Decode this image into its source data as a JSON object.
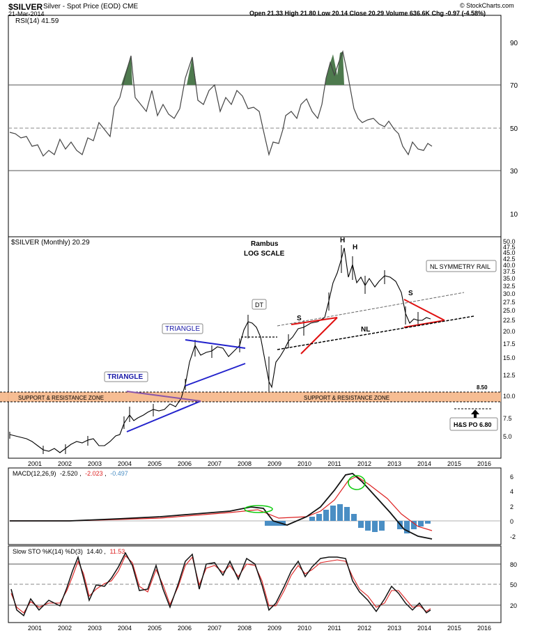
{
  "header": {
    "symbol": "$SILVER",
    "description": "Silver - Spot Price (EOD)",
    "exchange": "CME",
    "date": "21-Mar-2014",
    "quote": "Open 21.33  High 21.80  Low 20.14  Close 20.29  Volume 636.6K  Chg -0.97 (-4.58%)",
    "credit": "© StockCharts.com"
  },
  "rsi_panel": {
    "label": "RSI(14) 41.59",
    "y_ticks": [
      "90",
      "70",
      "50",
      "30",
      "10"
    ]
  },
  "price_panel": {
    "label": "$SILVER (Monthly) 20.29",
    "note_line1": "Rambus",
    "note_line2": "LOG SCALE",
    "y_ticks": [
      "50.0",
      "47.5",
      "45.0",
      "42.5",
      "40.0",
      "37.5",
      "35.0",
      "32.5",
      "30.0",
      "27.5",
      "25.0",
      "22.5",
      "20.0",
      "17.5",
      "15.0",
      "12.5",
      "10.0",
      "7.5",
      "5.0"
    ],
    "annotations": {
      "triangle_2004": "TRIANGLE",
      "triangle_2006": "TRIANGLE",
      "dt": "DT",
      "s_left": "S",
      "h1": "H",
      "h2": "H",
      "s_right": "S",
      "nl": "NL",
      "nl_rail": "NL SYMMETRY RAIL",
      "zone_left": "SUPPORT & RESISTANCE ZONE",
      "zone_mid": "SUPPORT & RESISTANCE ZONE",
      "level_850": "8.50",
      "hs_po": "H&S PO 6.80"
    }
  },
  "macd_panel": {
    "label": "MACD(12,26,9)",
    "v1": "-2.520",
    "v2": "-2.023",
    "v3": "-0.497",
    "y_ticks": [
      "6",
      "4",
      "2",
      "0",
      "-2"
    ]
  },
  "sto_panel": {
    "label": "Slow STO %K(14) %D(3)",
    "k": "14.40",
    "d": "11.53",
    "y_ticks": [
      "80",
      "50",
      "20"
    ]
  },
  "x_ticks": [
    "2001",
    "2002",
    "2003",
    "2004",
    "2005",
    "2006",
    "2007",
    "2008",
    "2009",
    "2010",
    "2011",
    "2012",
    "2013",
    "2014",
    "2015",
    "2016"
  ],
  "chart_data": {
    "type": "line",
    "title": "$SILVER Silver - Spot Price (EOD) CME",
    "timeframe": "Monthly",
    "scale": "log",
    "x": [
      "2001-01",
      "2001-07",
      "2002-01",
      "2002-07",
      "2003-01",
      "2003-07",
      "2004-01",
      "2004-04",
      "2004-07",
      "2005-01",
      "2005-07",
      "2006-01",
      "2006-04",
      "2006-07",
      "2007-01",
      "2007-07",
      "2008-01",
      "2008-03",
      "2008-07",
      "2008-10",
      "2009-01",
      "2009-07",
      "2010-01",
      "2010-07",
      "2011-01",
      "2011-04",
      "2011-07",
      "2011-09",
      "2012-01",
      "2012-07",
      "2013-01",
      "2013-07",
      "2014-01",
      "2014-03"
    ],
    "series": [
      {
        "name": "$SILVER (Monthly)",
        "values": [
          4.9,
          4.7,
          4.5,
          4.6,
          4.8,
          4.9,
          6.2,
          7.8,
          6.3,
          6.8,
          7.2,
          9.0,
          12.5,
          11.0,
          13.4,
          12.8,
          16.5,
          20.0,
          17.0,
          9.5,
          11.5,
          13.0,
          17.0,
          18.5,
          30.0,
          47.0,
          38.0,
          30.0,
          33.0,
          28.0,
          31.0,
          20.5,
          21.0,
          20.29
        ]
      },
      {
        "name": "RSI(14)",
        "values": [
          47,
          42,
          40,
          48,
          45,
          52,
          80,
          85,
          55,
          60,
          58,
          70,
          83,
          55,
          62,
          56,
          68,
          70,
          55,
          38,
          52,
          55,
          60,
          66,
          80,
          86,
          70,
          55,
          60,
          50,
          52,
          40,
          42,
          41.59
        ]
      },
      {
        "name": "MACD",
        "values": [
          -0.1,
          -0.1,
          -0.1,
          -0.1,
          -0.1,
          -0.1,
          0.1,
          0.3,
          0.3,
          0.3,
          0.3,
          0.4,
          0.8,
          0.9,
          0.8,
          0.8,
          1.0,
          1.6,
          1.5,
          0.0,
          -0.5,
          -0.3,
          0.5,
          1.0,
          3.2,
          5.8,
          6.3,
          5.5,
          4.5,
          3.0,
          1.6,
          -1.0,
          -2.0,
          -2.52
        ]
      },
      {
        "name": "Slow STO %K",
        "values": [
          25,
          10,
          20,
          60,
          85,
          45,
          90,
          85,
          30,
          70,
          40,
          90,
          95,
          60,
          80,
          60,
          90,
          80,
          50,
          5,
          20,
          40,
          60,
          80,
          90,
          90,
          60,
          30,
          50,
          20,
          40,
          10,
          25,
          14.4
        ]
      }
    ],
    "rsi_levels": [
      70,
      50,
      30
    ],
    "sto_levels": [
      80,
      50,
      20
    ],
    "price_levels": {
      "support_resistance_top": 8.5,
      "support_resistance_bottom": 7.5,
      "hs_price_objective": 6.8
    }
  }
}
